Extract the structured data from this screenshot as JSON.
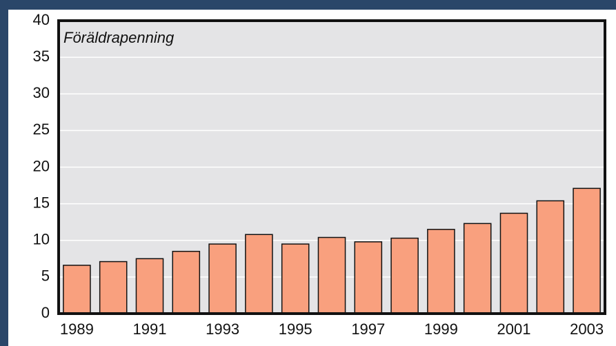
{
  "chart_data": {
    "type": "bar",
    "title": "Föräldrapenning",
    "categories": [
      "1989",
      null,
      "1991",
      null,
      "1993",
      null,
      "1995",
      null,
      "1997",
      null,
      "1999",
      null,
      "2001",
      null,
      "2003"
    ],
    "values": [
      6.6,
      7.1,
      7.5,
      8.5,
      9.5,
      10.8,
      9.5,
      10.4,
      9.8,
      10.3,
      11.5,
      12.3,
      13.7,
      15.4,
      17.1
    ],
    "color": "#f9a07e",
    "ylim": [
      0,
      40
    ],
    "yticks": [
      0,
      5,
      10,
      15,
      20,
      25,
      30,
      35,
      40
    ],
    "grid": true
  }
}
